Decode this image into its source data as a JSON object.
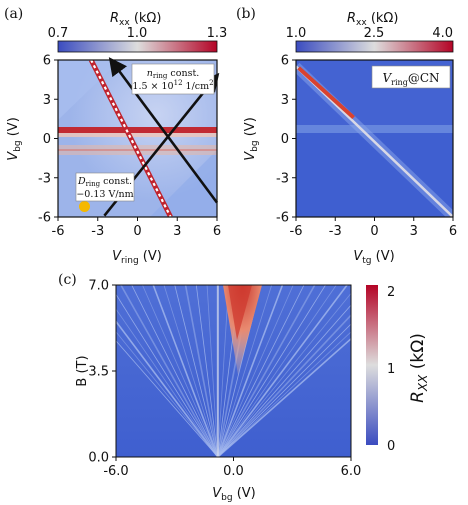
{
  "colors": {
    "cmap_low": "#3b4cc0",
    "cmap_mid": "#dddddd",
    "cmap_high": "#b40426",
    "dirac_line": "#cc1f2a",
    "arrow": "#111111",
    "dashed_line": "#c0232d",
    "marker": "#f5b800"
  },
  "chart_data": [
    {
      "panel_label": "(a)",
      "type": "heatmap",
      "xlabel_base": "V",
      "xlabel_sub": "ring",
      "xlabel_unit": " (V)",
      "ylabel_base": "V",
      "ylabel_sub": "bg",
      "ylabel_unit": " (V)",
      "xlim": [
        -6,
        6
      ],
      "ylim": [
        -6,
        6
      ],
      "x_ticks": [
        -6,
        -3,
        0,
        3,
        6
      ],
      "y_ticks": [
        6,
        3,
        0,
        -3,
        -6
      ],
      "colorbar": {
        "label_base": "R",
        "label_sub": "xx",
        "label_unit": " (kΩ)",
        "ticks": [
          "0.7",
          "1.0",
          "1.3"
        ],
        "range": [
          0.7,
          1.3
        ]
      },
      "features": {
        "horizontal_resonance_vbg": 0.6,
        "dashed_line": {
          "from": [
            -3.5,
            6
          ],
          "to": [
            2.5,
            -6
          ]
        },
        "arrows": [
          {
            "from": [
              -2.5,
              -5.9
            ],
            "to": [
              6,
              4.8
            ]
          },
          {
            "from": [
              6,
              -4.9
            ],
            "to": [
              -2,
              6
            ]
          }
        ],
        "marker": [
          -4.0,
          -5.2
        ]
      },
      "annotations": {
        "n_ring": {
          "line1": "n_ring const.",
          "line2": "1.5 × 10^12 1/cm^2"
        },
        "d_ring": {
          "line1": "D_ring const.",
          "line2": "−0.13 V/nm"
        }
      }
    },
    {
      "panel_label": "(b)",
      "type": "heatmap",
      "xlabel_base": "V",
      "xlabel_sub": "tg",
      "xlabel_unit": " (V)",
      "ylabel_base": "V",
      "ylabel_sub": "bg",
      "ylabel_unit": " (V)",
      "xlim": [
        -6,
        6
      ],
      "ylim": [
        -6,
        6
      ],
      "x_ticks": [
        -6,
        -3,
        0,
        3,
        6
      ],
      "y_ticks": [
        6,
        3,
        0,
        -3,
        -6
      ],
      "colorbar": {
        "label_base": "R",
        "label_sub": "xx",
        "label_unit": " (kΩ)",
        "ticks": [
          "1.0",
          "2.5",
          "4.0"
        ],
        "range": [
          1.0,
          4.0
        ]
      },
      "features": {
        "diagonal": {
          "from": [
            -6,
            5.5
          ],
          "to": [
            6,
            -6
          ]
        },
        "horizontal_band_vbg": 0.8
      },
      "annotations": {
        "label": "V_ring@CN"
      }
    },
    {
      "panel_label": "(c)",
      "type": "heatmap",
      "xlabel_base": "V",
      "xlabel_sub": "bg",
      "xlabel_unit": " (V)",
      "ylabel": "B (T)",
      "xlim": [
        -6,
        6
      ],
      "ylim": [
        0,
        7
      ],
      "x_ticks": [
        "-6.0",
        "0.0",
        "6.0"
      ],
      "y_ticks": [
        "7.0",
        "3.5",
        "0.0"
      ],
      "colorbar": {
        "label_base": "R",
        "label_sub": "XX",
        "label_unit": " (kΩ)",
        "ticks": [
          "2",
          "1",
          "0"
        ],
        "range": [
          0,
          2
        ]
      },
      "features": {
        "fan_origin_vbg": -0.8,
        "max_region_vbg": [
          0,
          1.5
        ]
      }
    }
  ]
}
